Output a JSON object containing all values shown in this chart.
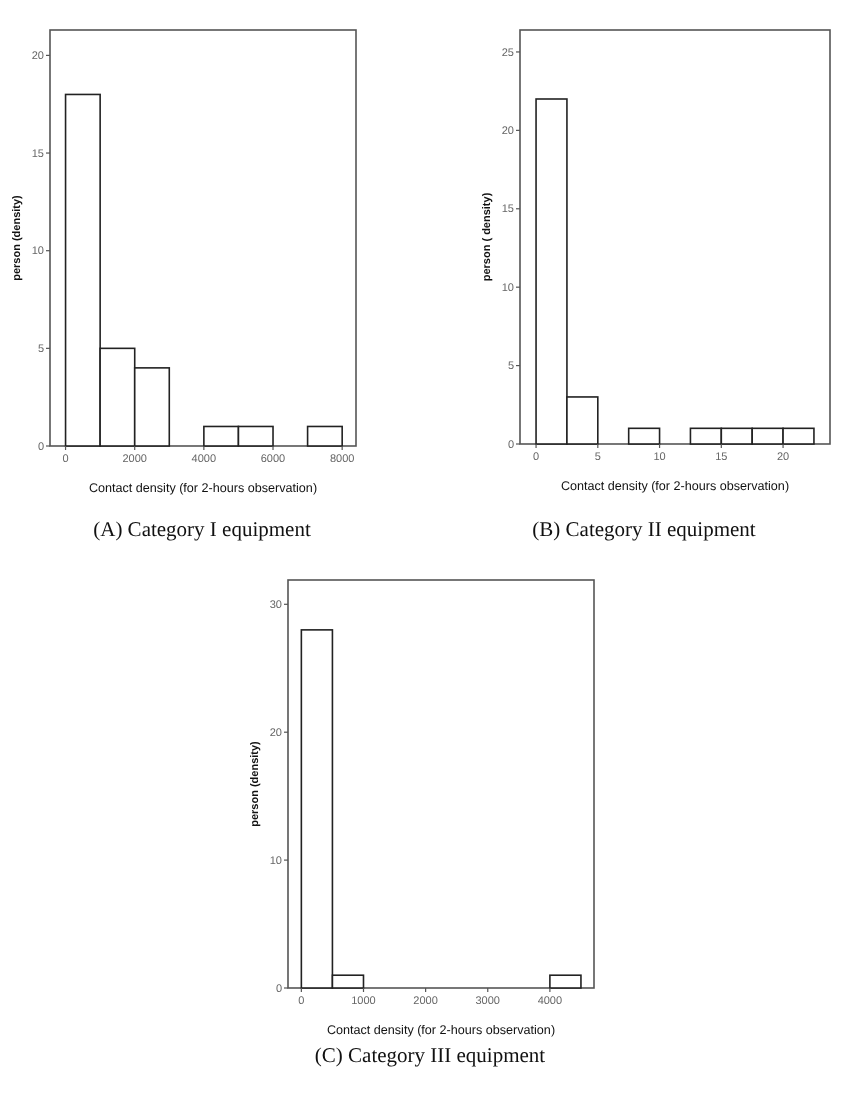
{
  "chart_data": [
    {
      "type": "histogram",
      "title": "(A) Category I equipment",
      "xlabel": "Contact density (for 2-hours observation)",
      "ylabel": "person (density)",
      "bins": [
        0,
        1000,
        2000,
        3000,
        4000,
        5000,
        6000,
        7000,
        8000
      ],
      "values": [
        18,
        5,
        4,
        0,
        1,
        1,
        0,
        1
      ],
      "color": "#ffffff",
      "xlim": [
        -450,
        8400
      ],
      "xticks": [
        0,
        2000,
        4000,
        6000,
        8000
      ],
      "ylim": [
        0,
        21.3
      ],
      "yticks": [
        0,
        5,
        10,
        15,
        20
      ],
      "grid": false
    },
    {
      "type": "histogram",
      "title": "(B) Category II equipment",
      "xlabel": "Contact density (for 2-hours observation)",
      "ylabel": "person ( density)",
      "bins": [
        0,
        2.5,
        5,
        7.5,
        10,
        12.5,
        15,
        17.5,
        20,
        22.5
      ],
      "values": [
        22,
        3,
        0,
        1,
        0,
        1,
        1,
        1,
        1
      ],
      "color": "#ffffff",
      "xlim": [
        -1.3,
        23.8
      ],
      "xticks": [
        0,
        5,
        10,
        15,
        20
      ],
      "ylim": [
        0,
        26.4
      ],
      "yticks": [
        0,
        5,
        10,
        15,
        20,
        25
      ],
      "grid": false
    },
    {
      "type": "histogram",
      "title": "(C) Category III equipment",
      "xlabel": "Contact density (for 2-hours observation)",
      "ylabel": "person (density)",
      "bins": [
        0,
        500,
        1000,
        1500,
        2000,
        2500,
        3000,
        3500,
        4000,
        4500
      ],
      "values": [
        28,
        1,
        0,
        0,
        0,
        0,
        0,
        0,
        1
      ],
      "color": "#ffffff",
      "xlim": [
        -215,
        4710
      ],
      "xticks": [
        0,
        1000,
        2000,
        3000,
        4000
      ],
      "ylim": [
        0,
        31.9
      ],
      "yticks": [
        0,
        10,
        20,
        30
      ],
      "grid": false
    }
  ]
}
